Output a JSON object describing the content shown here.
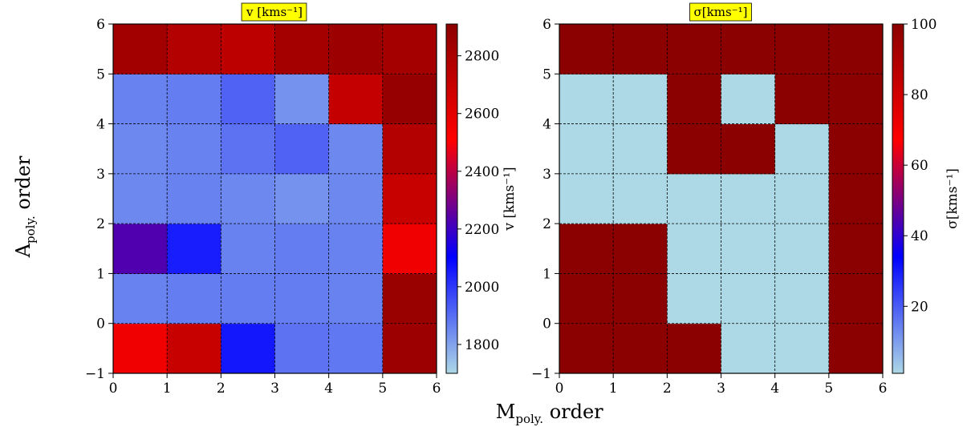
{
  "figure": {
    "xlabel_main": "M",
    "xlabel_sub": "poly.",
    "xlabel_rest": " order",
    "ylabel_main": "A",
    "ylabel_sub": "poly.",
    "ylabel_rest": " order"
  },
  "chart_data": [
    {
      "type": "heatmap",
      "title": "v [kms⁻¹]",
      "title_bg": "#ffff00",
      "xlabel": "M_poly. order",
      "ylabel": "A_poly. order",
      "x_edges": [
        0,
        1,
        2,
        3,
        4,
        5,
        6
      ],
      "y_edges": [
        -1,
        0,
        1,
        2,
        3,
        4,
        5,
        6
      ],
      "xlim": [
        0,
        6
      ],
      "ylim": [
        -1,
        6
      ],
      "xticks": [
        "0",
        "1",
        "2",
        "3",
        "4",
        "5",
        "6"
      ],
      "yticks": [
        "−1",
        "0",
        "1",
        "2",
        "3",
        "4",
        "5",
        "6"
      ],
      "grid": true,
      "colorbar": {
        "label": "v [kms⁻¹]",
        "range": [
          1700,
          2910
        ],
        "ticks": [
          "1800",
          "2000",
          "2200",
          "2400",
          "2600",
          "2800"
        ],
        "tick_values": [
          1800,
          2000,
          2200,
          2400,
          2600,
          2800
        ],
        "colors": [
          "#add8e6",
          "#0000ff",
          "#ff0000",
          "#8b0000"
        ]
      },
      "rows_y": [
        -1,
        0,
        1,
        2,
        3,
        4,
        5
      ],
      "values": [
        [
          2560,
          2700,
          2060,
          1890,
          1880,
          2850
        ],
        [
          1860,
          1870,
          1870,
          1870,
          1860,
          2860
        ],
        [
          2230,
          2050,
          1860,
          1870,
          1860,
          2560
        ],
        [
          1850,
          1860,
          1850,
          1830,
          1850,
          2700
        ],
        [
          1850,
          1860,
          1890,
          1920,
          1850,
          2770
        ],
        [
          1860,
          1870,
          1920,
          1830,
          2710,
          2870
        ],
        [
          2830,
          2770,
          2740,
          2820,
          2850,
          2820
        ]
      ]
    },
    {
      "type": "heatmap",
      "title": "σ[kms⁻¹]",
      "title_bg": "#ffff00",
      "xlabel": "M_poly. order",
      "ylabel": "A_poly. order",
      "x_edges": [
        0,
        1,
        2,
        3,
        4,
        5,
        6
      ],
      "y_edges": [
        -1,
        0,
        1,
        2,
        3,
        4,
        5,
        6
      ],
      "xlim": [
        0,
        6
      ],
      "ylim": [
        -1,
        6
      ],
      "xticks": [
        "0",
        "1",
        "2",
        "3",
        "4",
        "5",
        "6"
      ],
      "yticks": [
        "−1",
        "0",
        "1",
        "2",
        "3",
        "4",
        "5",
        "6"
      ],
      "grid": true,
      "colorbar": {
        "label": "σ[kms⁻¹]",
        "range": [
          1,
          100
        ],
        "ticks": [
          "20",
          "40",
          "60",
          "80",
          "100"
        ],
        "tick_values": [
          20,
          40,
          60,
          80,
          100
        ],
        "colors": [
          "#add8e6",
          "#0000ff",
          "#ff0000",
          "#8b0000"
        ]
      },
      "rows_y": [
        -1,
        0,
        1,
        2,
        3,
        4,
        5
      ],
      "values": [
        [
          100,
          100,
          100,
          1,
          1,
          100
        ],
        [
          100,
          100,
          1,
          1,
          1,
          100
        ],
        [
          100,
          100,
          1,
          1,
          1,
          100
        ],
        [
          1,
          1,
          1,
          1,
          1,
          100
        ],
        [
          1,
          1,
          100,
          100,
          1,
          100
        ],
        [
          1,
          1,
          100,
          1,
          100,
          100
        ],
        [
          100,
          100,
          100,
          100,
          100,
          100
        ]
      ]
    }
  ]
}
